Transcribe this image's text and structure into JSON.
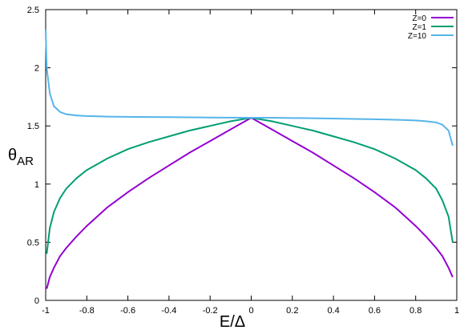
{
  "chart_data": {
    "type": "line",
    "xlabel": "E/Δ",
    "ylabel": "θ",
    "ylabel_subscript": "AR",
    "x": [
      -1,
      -0.995,
      -0.98,
      -0.96,
      -0.93,
      -0.9,
      -0.85,
      -0.8,
      -0.7,
      -0.6,
      -0.5,
      -0.4,
      -0.3,
      -0.2,
      -0.1,
      0,
      0.1,
      0.2,
      0.3,
      0.4,
      0.5,
      0.6,
      0.7,
      0.8,
      0.85,
      0.9,
      0.93,
      0.96,
      0.98
    ],
    "series": [
      {
        "name": "Z=0",
        "color": "#9400d3",
        "values": [
          null,
          0.1,
          0.2,
          0.28,
          0.38,
          0.45,
          0.55,
          0.64,
          0.8,
          0.93,
          1.05,
          1.16,
          1.27,
          1.37,
          1.47,
          1.57,
          1.47,
          1.37,
          1.27,
          1.16,
          1.05,
          0.93,
          0.8,
          0.64,
          0.55,
          0.45,
          0.38,
          0.28,
          0.2
        ]
      },
      {
        "name": "Z=1",
        "color": "#009e73",
        "values": [
          null,
          0.4,
          0.62,
          0.76,
          0.88,
          0.96,
          1.05,
          1.12,
          1.22,
          1.3,
          1.36,
          1.41,
          1.46,
          1.5,
          1.54,
          1.57,
          1.54,
          1.5,
          1.46,
          1.41,
          1.36,
          1.3,
          1.22,
          1.12,
          1.05,
          0.96,
          0.86,
          0.72,
          0.5
        ]
      },
      {
        "name": "Z=10",
        "color": "#56b4e9",
        "values": [
          2.33,
          2.0,
          1.78,
          1.67,
          1.62,
          1.6,
          1.59,
          1.585,
          1.58,
          1.578,
          1.576,
          1.575,
          1.574,
          1.572,
          1.571,
          1.57,
          1.57,
          1.568,
          1.566,
          1.563,
          1.56,
          1.557,
          1.553,
          1.547,
          1.54,
          1.53,
          1.51,
          1.46,
          1.33
        ]
      }
    ],
    "xlim": [
      -1,
      1
    ],
    "xticks": [
      -1,
      -0.8,
      -0.6,
      -0.4,
      -0.2,
      0,
      0.2,
      0.4,
      0.6,
      0.8,
      1
    ],
    "ylim": [
      0,
      2.5
    ],
    "yticks": [
      0,
      0.5,
      1,
      1.5,
      2,
      2.5
    ],
    "legend": "top-right"
  }
}
